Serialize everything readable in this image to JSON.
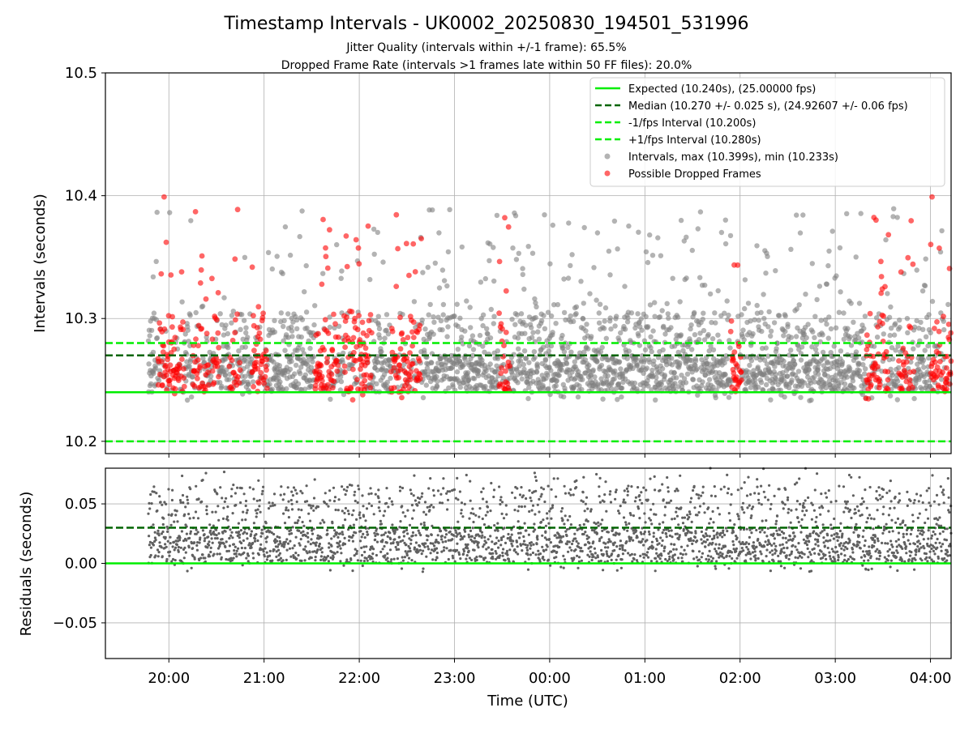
{
  "chart_data": [
    {
      "type": "scatter",
      "title": "Timestamp Intervals - UK0002_20250830_194501_531996",
      "subtitle_lines": [
        "Jitter Quality (intervals within +/-1 frame): 65.5%",
        "Dropped Frame Rate (intervals >1 frames late within 50 FF files): 20.0%"
      ],
      "ylabel": "Intervals (seconds)",
      "xlabel": "",
      "ylim": [
        10.19,
        10.5
      ],
      "xlim": [
        "2025-08-30T19:20",
        "2025-08-31T04:13"
      ],
      "yticks": [
        "10.2",
        "10.3",
        "10.4",
        "10.5"
      ],
      "yticks_values": [
        10.2,
        10.3,
        10.4,
        10.5
      ],
      "grid": true,
      "legend_position": "upper right",
      "lines": [
        {
          "name": "Expected (10.240s), (25.00000 fps)",
          "y": 10.24,
          "color": "#00ee00",
          "style": "solid"
        },
        {
          "name": "Median (10.270 +/- 0.025 s), (24.92607 +/- 0.06 fps)",
          "y": 10.27,
          "color": "#006400",
          "style": "dashed"
        },
        {
          "name": "-1/fps Interval (10.200s)",
          "y": 10.2,
          "color": "#00ee00",
          "style": "dashed"
        },
        {
          "name": "+1/fps Interval (10.280s)",
          "y": 10.28,
          "color": "#00ee00",
          "style": "dashed"
        }
      ],
      "series": [
        {
          "name": "Intervals, max (10.399s), min (10.233s)",
          "color": "#808080",
          "summary": {
            "max": 10.399,
            "min": 10.233,
            "start": "2025-08-30T19:47",
            "end": "2025-08-31T04:13"
          }
        },
        {
          "name": "Possible Dropped Frames",
          "color": "#ff0000",
          "clusters": [
            {
              "start": "19:53",
              "end": "20:10"
            },
            {
              "start": "20:15",
              "end": "20:25"
            },
            {
              "start": "20:27",
              "end": "20:32"
            },
            {
              "start": "20:38",
              "end": "20:45"
            },
            {
              "start": "20:52",
              "end": "21:02"
            },
            {
              "start": "21:32",
              "end": "21:47"
            },
            {
              "start": "21:50",
              "end": "22:08"
            },
            {
              "start": "22:20",
              "end": "22:40"
            },
            {
              "start": "23:28",
              "end": "23:35"
            },
            {
              "start": "01:54",
              "end": "02:01"
            },
            {
              "start": "03:19",
              "end": "03:34"
            },
            {
              "start": "03:40",
              "end": "03:50"
            },
            {
              "start": "04:00",
              "end": "04:13"
            }
          ],
          "highlights": [
            {
              "x": "19:57",
              "y": 10.399
            },
            {
              "x": "04:01",
              "y": 10.399
            }
          ]
        }
      ]
    },
    {
      "type": "scatter",
      "xlabel": "Time (UTC)",
      "ylabel": "Residuals (seconds)",
      "ylim": [
        -0.08,
        0.08
      ],
      "xlim": [
        "2025-08-30T19:20",
        "2025-08-31T04:13"
      ],
      "yticks": [
        "−0.05",
        "0.00",
        "0.05"
      ],
      "yticks_values": [
        -0.05,
        0,
        0.05
      ],
      "xticks": [
        "20:00",
        "21:00",
        "22:00",
        "23:00",
        "00:00",
        "01:00",
        "02:00",
        "03:00",
        "04:00"
      ],
      "grid": true,
      "lines": [
        {
          "y": 0,
          "color": "#00ee00",
          "style": "solid"
        },
        {
          "y": 0.03,
          "color": "#006400",
          "style": "dashed"
        }
      ],
      "series": [
        {
          "color": "#606060",
          "summary": {
            "min": -0.007,
            "max": 0.08
          }
        }
      ]
    }
  ]
}
